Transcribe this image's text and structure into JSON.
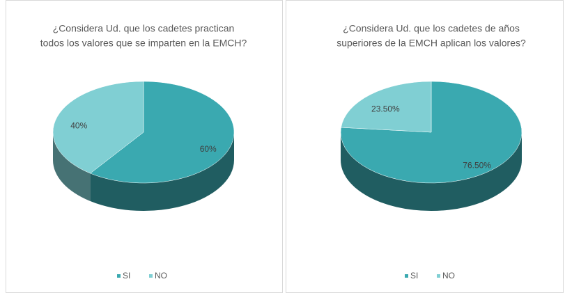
{
  "chart_data": [
    {
      "type": "pie",
      "title": [
        "¿Considera Ud. que los cadetes practican",
        "todos los valores que se imparten en la EMCH?"
      ],
      "categories": [
        "SI",
        "NO"
      ],
      "values": [
        60,
        40
      ],
      "value_labels": [
        "60%",
        "40%"
      ],
      "colors": [
        "#3aa9b0",
        "#80cfd3"
      ],
      "legend": "bottom"
    },
    {
      "type": "pie",
      "title": [
        "¿Considera Ud. que los cadetes de años",
        "superiores de la EMCH aplican los valores?"
      ],
      "categories": [
        "SI",
        "NO"
      ],
      "values": [
        76.5,
        23.5
      ],
      "value_labels": [
        "76.50%",
        "23.50%"
      ],
      "colors": [
        "#3aa9b0",
        "#80cfd3"
      ],
      "legend": "bottom"
    }
  ]
}
